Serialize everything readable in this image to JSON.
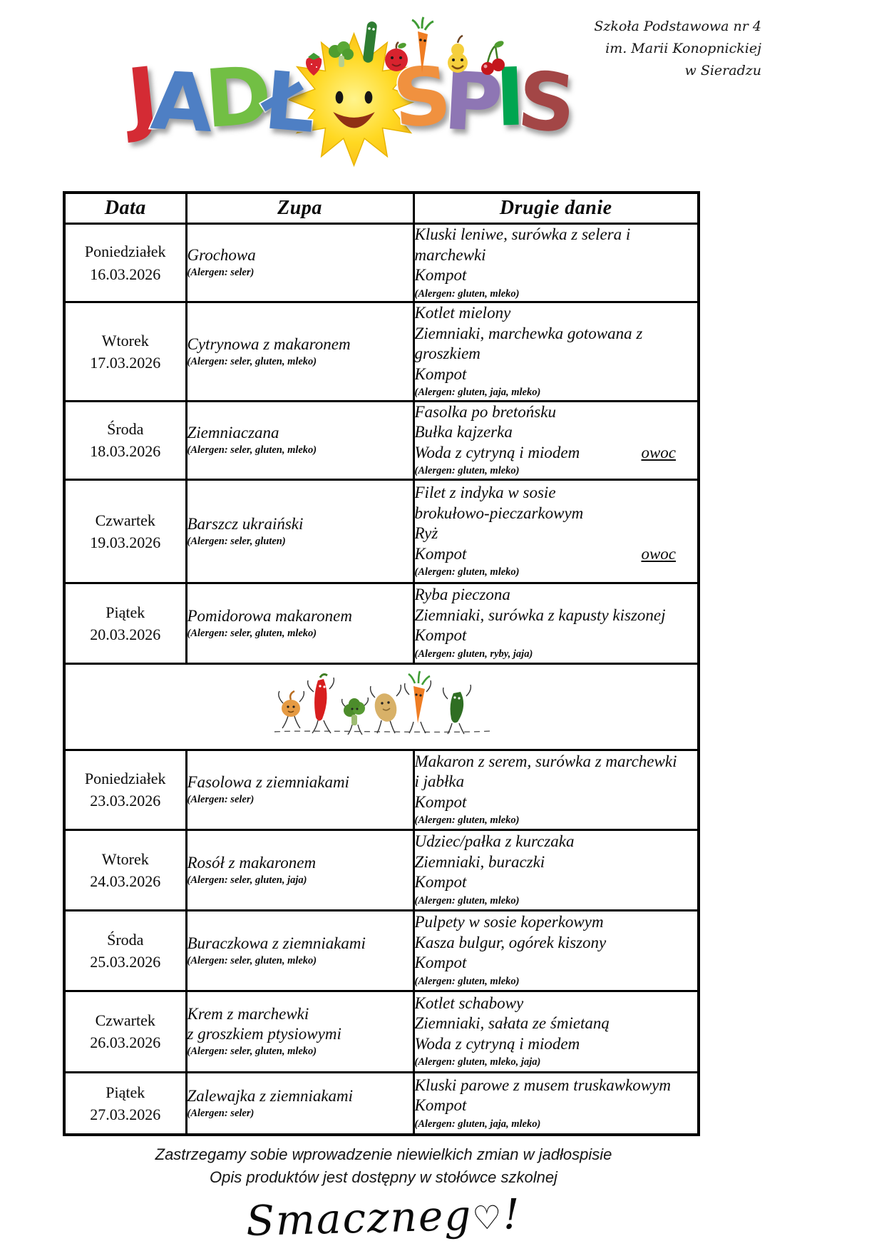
{
  "page": {
    "school_lines": [
      "Szkoła Podstawowa nr 4",
      "im. Marii Konopnickiej",
      "w Sieradzu"
    ]
  },
  "logo": {
    "word_start": [
      {
        "ch": "J",
        "color": "#d42b34"
      },
      {
        "ch": "A",
        "color": "#4e7fc4"
      },
      {
        "ch": "D",
        "color": "#72bf44"
      },
      {
        "ch": "Ł",
        "color": "#4e7fc4"
      }
    ],
    "word_end": [
      {
        "ch": "S",
        "color": "#f0913f"
      },
      {
        "ch": "P",
        "color": "#8e76b4"
      },
      {
        "ch": "I",
        "color": "#00a550"
      },
      {
        "ch": "S",
        "color": "#a34646"
      }
    ],
    "sun_color": "#ffd821"
  },
  "table": {
    "headers": [
      "Data",
      "Zupa",
      "Drugie danie"
    ],
    "rows": [
      {
        "day": "Poniedziałek",
        "date": "16.03.2026",
        "soup": {
          "lines": [
            "Grochowa"
          ],
          "allergen": "(Alergen: seler)"
        },
        "main": {
          "lines": [
            {
              "text": "Kluski leniwe, surówka z selera i marchewki"
            },
            {
              "text": "Kompot"
            }
          ],
          "allergen": "(Alergen: gluten, mleko)"
        }
      },
      {
        "day": "Wtorek",
        "date": "17.03.2026",
        "soup": {
          "lines": [
            "Cytrynowa z makaronem"
          ],
          "allergen": "(Alergen: seler, gluten, mleko)"
        },
        "main": {
          "lines": [
            {
              "text": "Kotlet mielony"
            },
            {
              "text": "Ziemniaki, marchewka gotowana z groszkiem"
            },
            {
              "text": "Kompot"
            }
          ],
          "allergen": "(Alergen: gluten, jaja, mleko)"
        }
      },
      {
        "day": "Środa",
        "date": "18.03.2026",
        "soup": {
          "lines": [
            "Ziemniaczana"
          ],
          "allergen": "(Alergen: seler, gluten, mleko)"
        },
        "main": {
          "lines": [
            {
              "text": "Fasolka po bretońsku"
            },
            {
              "text": "Bułka kajzerka"
            },
            {
              "text": "Woda z cytryną i miodem",
              "right": "owoc"
            }
          ],
          "allergen": "(Alergen: gluten, mleko)"
        }
      },
      {
        "day": "Czwartek",
        "date": "19.03.2026",
        "soup": {
          "lines": [
            "Barszcz ukraiński"
          ],
          "allergen": "(Alergen: seler, gluten)"
        },
        "main": {
          "lines": [
            {
              "text": "Filet z indyka w sosie"
            },
            {
              "text": "brokułowo-pieczarkowym"
            },
            {
              "text": "Ryż"
            },
            {
              "text": "Kompot",
              "right": "owoc"
            }
          ],
          "allergen": "(Alergen: gluten, mleko)"
        }
      },
      {
        "day": "Piątek",
        "date": "20.03.2026",
        "soup": {
          "lines": [
            "Pomidorowa makaronem"
          ],
          "allergen": "(Alergen: seler, gluten, mleko)"
        },
        "main": {
          "lines": [
            {
              "text": "Ryba pieczona"
            },
            {
              "text": "Ziemniaki, surówka z kapusty kiszonej"
            },
            {
              "text": "Kompot"
            }
          ],
          "allergen": "(Alergen: gluten,  ryby, jaja)"
        }
      },
      {
        "day": "Poniedziałek",
        "date": "23.03.2026",
        "soup": {
          "lines": [
            "Fasolowa z ziemniakami"
          ],
          "allergen": "(Alergen: seler)"
        },
        "main": {
          "lines": [
            {
              "text": "Makaron z serem, surówka z marchewki"
            },
            {
              "text": "i jabłka"
            },
            {
              "text": "Kompot"
            }
          ],
          "allergen": "(Alergen: gluten, mleko)"
        }
      },
      {
        "day": "Wtorek",
        "date": "24.03.2026",
        "soup": {
          "lines": [
            "Rosół z makaronem"
          ],
          "allergen": "(Alergen: seler, gluten, jaja)"
        },
        "main": {
          "lines": [
            {
              "text": "Udziec/pałka z kurczaka"
            },
            {
              "text": "Ziemniaki, buraczki"
            },
            {
              "text": "Kompot"
            }
          ],
          "allergen": "(Alergen:  gluten, mleko)"
        }
      },
      {
        "day": "Środa",
        "date": "25.03.2026",
        "soup": {
          "lines": [
            "Buraczkowa z ziemniakami"
          ],
          "allergen": "(Alergen: seler, gluten, mleko)"
        },
        "main": {
          "lines": [
            {
              "text": "Pulpety w sosie koperkowym"
            },
            {
              "text": "Kasza bulgur, ogórek kiszony"
            },
            {
              "text": "Kompot"
            }
          ],
          "allergen": "(Alergen: gluten, mleko)"
        }
      },
      {
        "day": "Czwartek",
        "date": "26.03.2026",
        "soup": {
          "lines": [
            "Krem z marchewki",
            "z groszkiem ptysiowymi"
          ],
          "allergen": "(Alergen: seler, gluten, mleko)"
        },
        "main": {
          "lines": [
            {
              "text": "Kotlet schabowy"
            },
            {
              "text": "Ziemniaki, sałata ze śmietaną"
            },
            {
              "text": "Woda z cytryną i miodem"
            }
          ],
          "allergen": "(Alergen: gluten, mleko, jaja)"
        }
      },
      {
        "day": "Piątek",
        "date": "27.03.2026",
        "soup": {
          "lines": [
            "Zalewajka z ziemniakami"
          ],
          "allergen": "(Alergen: seler)"
        },
        "main": {
          "lines": [
            {
              "text": "Kluski parowe z musem truskawkowym"
            },
            {
              "text": "Kompot"
            }
          ],
          "allergen": "(Alergen: gluten,  jaja, mleko)"
        }
      }
    ]
  },
  "footer": {
    "line1": "Zastrzegamy sobie wprowadzenie niewielkich zmian w jadłospisie",
    "line2": "Opis produktów jest dostępny w stołówce szkolnej",
    "smacznego_text": "Smaczneg",
    "smacznego_heart": "♡",
    "smacznego_excl": "!"
  }
}
